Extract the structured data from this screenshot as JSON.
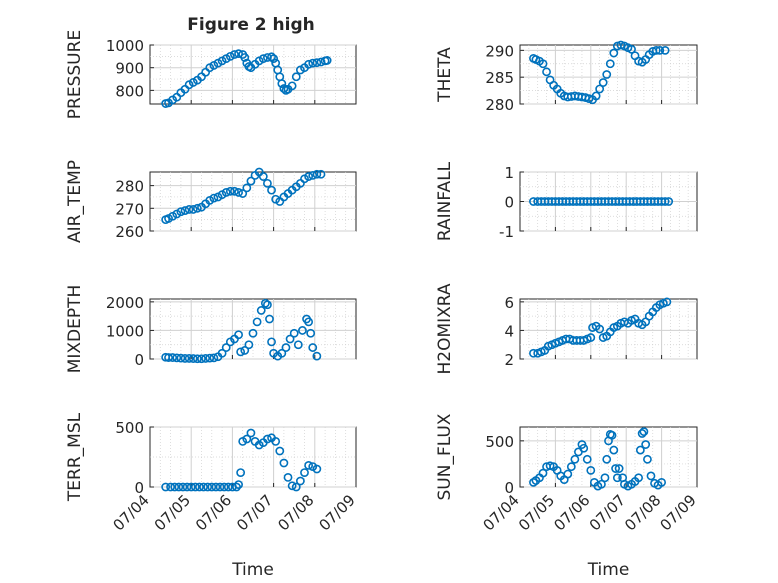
{
  "figure": {
    "title": "Figure 2 high",
    "marker_color": "#0072bd",
    "axis_color": "#262626",
    "grid_color": "#d0d0d0"
  },
  "chart_data": [
    {
      "type": "scatter",
      "ylabel": "PRESSURE",
      "xlabel": "",
      "xlim": [
        0,
        5
      ],
      "ylim": [
        740,
        1000
      ],
      "yticks": [
        800,
        900,
        1000
      ],
      "yticklabels": [
        "800",
        "900",
        "1000"
      ],
      "points": [
        [
          0.38,
          742
        ],
        [
          0.45,
          745
        ],
        [
          0.55,
          758
        ],
        [
          0.65,
          770
        ],
        [
          0.75,
          790
        ],
        [
          0.85,
          805
        ],
        [
          0.95,
          825
        ],
        [
          1.05,
          835
        ],
        [
          1.15,
          845
        ],
        [
          1.25,
          860
        ],
        [
          1.35,
          880
        ],
        [
          1.45,
          900
        ],
        [
          1.55,
          910
        ],
        [
          1.65,
          920
        ],
        [
          1.75,
          930
        ],
        [
          1.85,
          940
        ],
        [
          1.95,
          950
        ],
        [
          2.05,
          958
        ],
        [
          2.15,
          962
        ],
        [
          2.25,
          958
        ],
        [
          2.3,
          945
        ],
        [
          2.35,
          920
        ],
        [
          2.4,
          905
        ],
        [
          2.45,
          900
        ],
        [
          2.55,
          915
        ],
        [
          2.65,
          930
        ],
        [
          2.75,
          940
        ],
        [
          2.85,
          945
        ],
        [
          2.95,
          948
        ],
        [
          3.0,
          940
        ],
        [
          3.05,
          920
        ],
        [
          3.1,
          890
        ],
        [
          3.15,
          860
        ],
        [
          3.2,
          830
        ],
        [
          3.25,
          808
        ],
        [
          3.3,
          800
        ],
        [
          3.35,
          805
        ],
        [
          3.45,
          820
        ],
        [
          3.55,
          860
        ],
        [
          3.65,
          890
        ],
        [
          3.75,
          900
        ],
        [
          3.85,
          915
        ],
        [
          3.95,
          920
        ],
        [
          4.05,
          922
        ],
        [
          4.15,
          925
        ],
        [
          4.25,
          930
        ],
        [
          4.3,
          932
        ]
      ]
    },
    {
      "type": "scatter",
      "ylabel": "THETA",
      "xlabel": "",
      "xlim": [
        0,
        5
      ],
      "ylim": [
        280,
        291
      ],
      "yticks": [
        280,
        285,
        290
      ],
      "yticklabels": [
        "280",
        "285",
        "290"
      ],
      "points": [
        [
          0.38,
          288.5
        ],
        [
          0.45,
          288.3
        ],
        [
          0.55,
          288.0
        ],
        [
          0.65,
          287.5
        ],
        [
          0.75,
          286.0
        ],
        [
          0.85,
          284.5
        ],
        [
          0.95,
          283.5
        ],
        [
          1.05,
          282.8
        ],
        [
          1.15,
          282.0
        ],
        [
          1.25,
          281.5
        ],
        [
          1.35,
          281.3
        ],
        [
          1.45,
          281.4
        ],
        [
          1.55,
          281.5
        ],
        [
          1.65,
          281.4
        ],
        [
          1.75,
          281.3
        ],
        [
          1.85,
          281.2
        ],
        [
          1.95,
          281.0
        ],
        [
          2.05,
          280.8
        ],
        [
          2.15,
          281.5
        ],
        [
          2.25,
          282.8
        ],
        [
          2.35,
          284.0
        ],
        [
          2.45,
          285.5
        ],
        [
          2.55,
          287.5
        ],
        [
          2.65,
          289.5
        ],
        [
          2.75,
          290.8
        ],
        [
          2.85,
          291.0
        ],
        [
          2.95,
          290.8
        ],
        [
          3.05,
          290.5
        ],
        [
          3.15,
          290.2
        ],
        [
          3.25,
          289.0
        ],
        [
          3.35,
          288.0
        ],
        [
          3.45,
          287.8
        ],
        [
          3.55,
          288.3
        ],
        [
          3.65,
          289.2
        ],
        [
          3.75,
          289.8
        ],
        [
          3.85,
          290.0
        ],
        [
          3.95,
          290.0
        ],
        [
          4.1,
          290.0
        ]
      ]
    },
    {
      "type": "scatter",
      "ylabel": "AIR_TEMP",
      "xlabel": "",
      "xlim": [
        0,
        5
      ],
      "ylim": [
        260,
        286
      ],
      "yticks": [
        260,
        270,
        280
      ],
      "yticklabels": [
        "260",
        "270",
        "280"
      ],
      "points": [
        [
          0.38,
          265
        ],
        [
          0.45,
          265.5
        ],
        [
          0.55,
          266.5
        ],
        [
          0.65,
          267.5
        ],
        [
          0.75,
          268.5
        ],
        [
          0.85,
          269
        ],
        [
          0.95,
          269.5
        ],
        [
          1.05,
          269.5
        ],
        [
          1.15,
          270
        ],
        [
          1.25,
          270.5
        ],
        [
          1.35,
          272
        ],
        [
          1.45,
          273.5
        ],
        [
          1.55,
          274.5
        ],
        [
          1.65,
          275
        ],
        [
          1.75,
          276
        ],
        [
          1.85,
          277
        ],
        [
          1.95,
          277.5
        ],
        [
          2.05,
          277.5
        ],
        [
          2.15,
          277
        ],
        [
          2.25,
          276.5
        ],
        [
          2.35,
          279
        ],
        [
          2.45,
          282
        ],
        [
          2.55,
          284.5
        ],
        [
          2.65,
          286
        ],
        [
          2.75,
          284
        ],
        [
          2.85,
          281
        ],
        [
          2.95,
          278
        ],
        [
          3.05,
          274
        ],
        [
          3.15,
          273
        ],
        [
          3.25,
          275
        ],
        [
          3.35,
          276.5
        ],
        [
          3.45,
          278
        ],
        [
          3.55,
          279.5
        ],
        [
          3.65,
          281
        ],
        [
          3.75,
          283
        ],
        [
          3.85,
          284
        ],
        [
          3.95,
          284.5
        ],
        [
          4.05,
          285
        ],
        [
          4.15,
          285
        ]
      ]
    },
    {
      "type": "scatter",
      "ylabel": "RAINFALL",
      "xlabel": "",
      "xlim": [
        0,
        5
      ],
      "ylim": [
        -1,
        1
      ],
      "yticks": [
        -1,
        0,
        1
      ],
      "yticklabels": [
        "-1",
        "0",
        "1"
      ],
      "points": [
        [
          0.38,
          0
        ],
        [
          0.5,
          0
        ],
        [
          0.6,
          0
        ],
        [
          0.7,
          0
        ],
        [
          0.8,
          0
        ],
        [
          0.9,
          0
        ],
        [
          1.0,
          0
        ],
        [
          1.1,
          0
        ],
        [
          1.2,
          0
        ],
        [
          1.3,
          0
        ],
        [
          1.4,
          0
        ],
        [
          1.5,
          0
        ],
        [
          1.6,
          0
        ],
        [
          1.7,
          0
        ],
        [
          1.8,
          0
        ],
        [
          1.9,
          0
        ],
        [
          2.0,
          0
        ],
        [
          2.1,
          0
        ],
        [
          2.2,
          0
        ],
        [
          2.3,
          0
        ],
        [
          2.4,
          0
        ],
        [
          2.5,
          0
        ],
        [
          2.6,
          0
        ],
        [
          2.7,
          0
        ],
        [
          2.8,
          0
        ],
        [
          2.9,
          0
        ],
        [
          3.0,
          0
        ],
        [
          3.1,
          0
        ],
        [
          3.2,
          0
        ],
        [
          3.3,
          0
        ],
        [
          3.4,
          0
        ],
        [
          3.5,
          0
        ],
        [
          3.6,
          0
        ],
        [
          3.7,
          0
        ],
        [
          3.8,
          0
        ],
        [
          3.9,
          0
        ],
        [
          4.0,
          0
        ],
        [
          4.1,
          0
        ],
        [
          4.2,
          0
        ]
      ]
    },
    {
      "type": "scatter",
      "ylabel": "MIXDEPTH",
      "xlabel": "",
      "xlim": [
        0,
        5
      ],
      "ylim": [
        0,
        2100
      ],
      "yticks": [
        0,
        1000,
        2000
      ],
      "yticklabels": [
        "0",
        "1000",
        "2000"
      ],
      "points": [
        [
          0.38,
          60
        ],
        [
          0.45,
          50
        ],
        [
          0.55,
          50
        ],
        [
          0.65,
          40
        ],
        [
          0.75,
          30
        ],
        [
          0.85,
          20
        ],
        [
          0.95,
          20
        ],
        [
          1.05,
          15
        ],
        [
          1.15,
          10
        ],
        [
          1.25,
          10
        ],
        [
          1.35,
          20
        ],
        [
          1.45,
          30
        ],
        [
          1.55,
          40
        ],
        [
          1.65,
          80
        ],
        [
          1.75,
          200
        ],
        [
          1.85,
          400
        ],
        [
          1.95,
          600
        ],
        [
          2.05,
          700
        ],
        [
          2.15,
          850
        ],
        [
          2.2,
          250
        ],
        [
          2.3,
          300
        ],
        [
          2.4,
          500
        ],
        [
          2.5,
          900
        ],
        [
          2.6,
          1300
        ],
        [
          2.7,
          1700
        ],
        [
          2.8,
          1950
        ],
        [
          2.85,
          1900
        ],
        [
          2.9,
          1400
        ],
        [
          2.95,
          600
        ],
        [
          3.0,
          200
        ],
        [
          3.1,
          100
        ],
        [
          3.2,
          200
        ],
        [
          3.3,
          400
        ],
        [
          3.4,
          700
        ],
        [
          3.5,
          900
        ],
        [
          3.6,
          500
        ],
        [
          3.7,
          1000
        ],
        [
          3.8,
          1400
        ],
        [
          3.85,
          1300
        ],
        [
          3.9,
          900
        ],
        [
          3.95,
          400
        ],
        [
          4.05,
          100
        ]
      ]
    },
    {
      "type": "scatter",
      "ylabel": "H2OMIXRA",
      "xlabel": "",
      "xlim": [
        0,
        5
      ],
      "ylim": [
        2,
        6.2
      ],
      "yticks": [
        2,
        4,
        6
      ],
      "yticklabels": [
        "2",
        "4",
        "6"
      ],
      "points": [
        [
          0.38,
          2.4
        ],
        [
          0.5,
          2.4
        ],
        [
          0.6,
          2.5
        ],
        [
          0.7,
          2.6
        ],
        [
          0.8,
          2.9
        ],
        [
          0.9,
          3.0
        ],
        [
          1.0,
          3.1
        ],
        [
          1.1,
          3.2
        ],
        [
          1.2,
          3.3
        ],
        [
          1.3,
          3.4
        ],
        [
          1.4,
          3.4
        ],
        [
          1.5,
          3.3
        ],
        [
          1.6,
          3.3
        ],
        [
          1.7,
          3.3
        ],
        [
          1.8,
          3.3
        ],
        [
          1.9,
          3.4
        ],
        [
          2.0,
          3.5
        ],
        [
          2.05,
          4.2
        ],
        [
          2.15,
          4.3
        ],
        [
          2.25,
          4.1
        ],
        [
          2.35,
          3.5
        ],
        [
          2.45,
          3.6
        ],
        [
          2.55,
          3.9
        ],
        [
          2.65,
          4.2
        ],
        [
          2.75,
          4.3
        ],
        [
          2.85,
          4.5
        ],
        [
          2.95,
          4.6
        ],
        [
          3.05,
          4.5
        ],
        [
          3.15,
          4.7
        ],
        [
          3.25,
          4.8
        ],
        [
          3.35,
          4.5
        ],
        [
          3.45,
          4.4
        ],
        [
          3.55,
          4.6
        ],
        [
          3.65,
          5.0
        ],
        [
          3.75,
          5.3
        ],
        [
          3.85,
          5.6
        ],
        [
          3.95,
          5.8
        ],
        [
          4.05,
          5.9
        ],
        [
          4.15,
          6.0
        ]
      ]
    },
    {
      "type": "scatter",
      "ylabel": "TERR_MSL",
      "xlabel": "Time",
      "xlim": [
        0,
        5
      ],
      "ylim": [
        0,
        500
      ],
      "yticks": [
        0,
        500
      ],
      "yticklabels": [
        "0",
        "500"
      ],
      "xticks": [
        0,
        1,
        2,
        3,
        4,
        5
      ],
      "xticklabels": [
        "07/04",
        "07/05",
        "07/06",
        "07/07",
        "07/08",
        "07/09"
      ],
      "points": [
        [
          0.38,
          0
        ],
        [
          0.5,
          0
        ],
        [
          0.6,
          0
        ],
        [
          0.7,
          0
        ],
        [
          0.8,
          0
        ],
        [
          0.9,
          0
        ],
        [
          1.0,
          0
        ],
        [
          1.1,
          0
        ],
        [
          1.2,
          0
        ],
        [
          1.3,
          0
        ],
        [
          1.4,
          0
        ],
        [
          1.5,
          0
        ],
        [
          1.6,
          0
        ],
        [
          1.7,
          0
        ],
        [
          1.8,
          0
        ],
        [
          1.9,
          0
        ],
        [
          2.0,
          0
        ],
        [
          2.1,
          0
        ],
        [
          2.15,
          20
        ],
        [
          2.2,
          120
        ],
        [
          2.25,
          380
        ],
        [
          2.35,
          400
        ],
        [
          2.45,
          450
        ],
        [
          2.55,
          380
        ],
        [
          2.65,
          350
        ],
        [
          2.75,
          370
        ],
        [
          2.85,
          400
        ],
        [
          2.95,
          410
        ],
        [
          3.05,
          380
        ],
        [
          3.15,
          300
        ],
        [
          3.25,
          200
        ],
        [
          3.35,
          80
        ],
        [
          3.45,
          10
        ],
        [
          3.55,
          0
        ],
        [
          3.65,
          50
        ],
        [
          3.75,
          120
        ],
        [
          3.85,
          180
        ],
        [
          3.95,
          170
        ],
        [
          4.05,
          150
        ]
      ]
    },
    {
      "type": "scatter",
      "ylabel": "SUN_FLUX",
      "xlabel": "Time",
      "xlim": [
        0,
        5
      ],
      "ylim": [
        0,
        650
      ],
      "yticks": [
        0,
        500
      ],
      "yticklabels": [
        "0",
        "500"
      ],
      "xticks": [
        0,
        1,
        2,
        3,
        4,
        5
      ],
      "xticklabels": [
        "07/04",
        "07/05",
        "07/06",
        "07/07",
        "07/08",
        "07/09"
      ],
      "points": [
        [
          0.38,
          50
        ],
        [
          0.45,
          70
        ],
        [
          0.55,
          100
        ],
        [
          0.65,
          150
        ],
        [
          0.75,
          220
        ],
        [
          0.85,
          230
        ],
        [
          0.95,
          220
        ],
        [
          1.05,
          180
        ],
        [
          1.15,
          120
        ],
        [
          1.25,
          80
        ],
        [
          1.35,
          140
        ],
        [
          1.45,
          220
        ],
        [
          1.55,
          300
        ],
        [
          1.65,
          380
        ],
        [
          1.75,
          460
        ],
        [
          1.8,
          420
        ],
        [
          1.9,
          300
        ],
        [
          2.0,
          180
        ],
        [
          2.1,
          50
        ],
        [
          2.2,
          10
        ],
        [
          2.3,
          30
        ],
        [
          2.4,
          100
        ],
        [
          2.45,
          300
        ],
        [
          2.5,
          500
        ],
        [
          2.55,
          570
        ],
        [
          2.6,
          560
        ],
        [
          2.65,
          400
        ],
        [
          2.7,
          200
        ],
        [
          2.75,
          100
        ],
        [
          2.8,
          200
        ],
        [
          2.9,
          100
        ],
        [
          2.95,
          30
        ],
        [
          3.05,
          10
        ],
        [
          3.15,
          30
        ],
        [
          3.25,
          60
        ],
        [
          3.35,
          100
        ],
        [
          3.4,
          400
        ],
        [
          3.45,
          580
        ],
        [
          3.5,
          600
        ],
        [
          3.55,
          460
        ],
        [
          3.6,
          300
        ],
        [
          3.7,
          120
        ],
        [
          3.8,
          40
        ],
        [
          3.9,
          20
        ],
        [
          4.0,
          50
        ]
      ]
    }
  ]
}
